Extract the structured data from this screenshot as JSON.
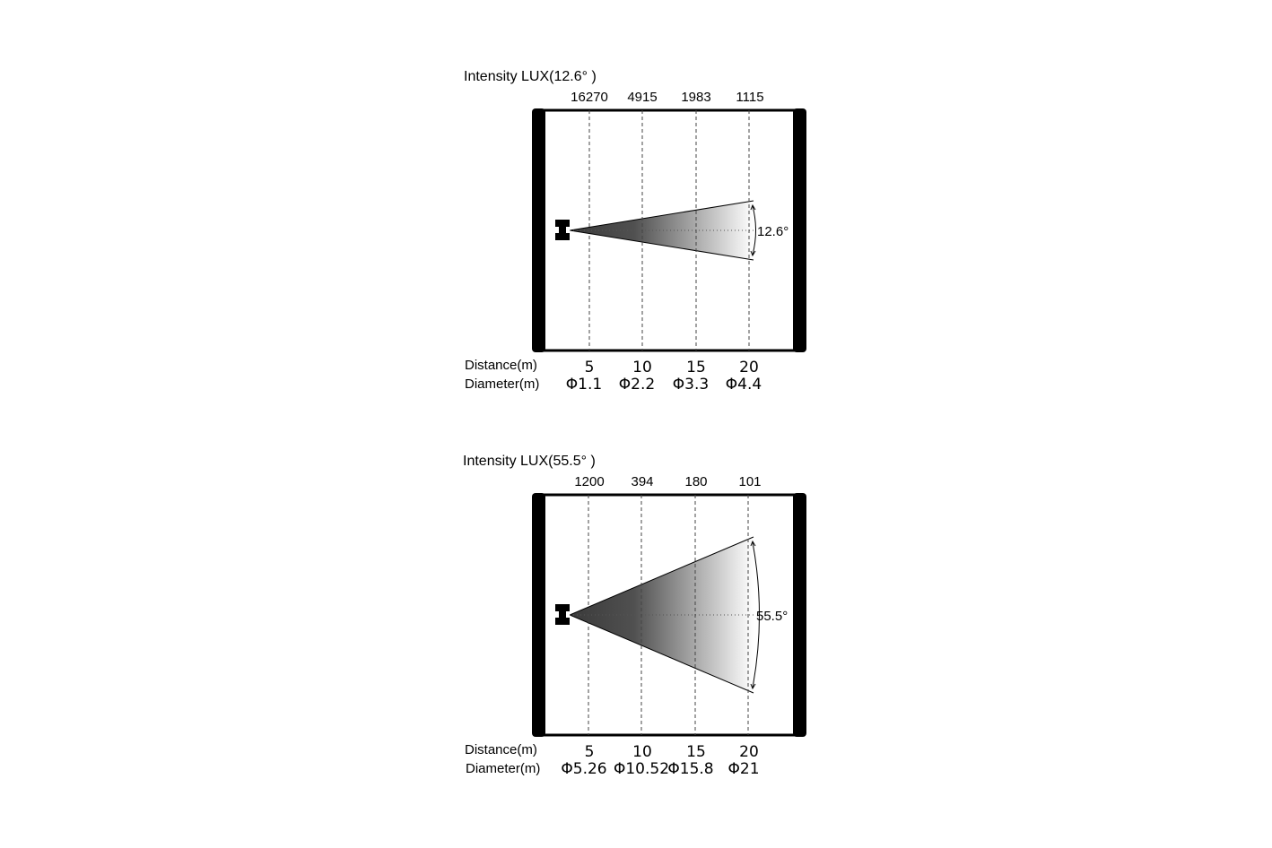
{
  "panels": [
    {
      "title": "Intensity LUX(12.6°  )",
      "beam_angle_label": "12.6°",
      "beam_angle_deg": 12.6,
      "lux_values": [
        "16270",
        "4915",
        "1983",
        "1115"
      ],
      "distance_label": "Distance(m)",
      "distances": [
        "5",
        "10",
        "15",
        "20"
      ],
      "diameter_label": "Diameter(m)",
      "diameters": [
        "Φ1.1",
        "Φ2.2",
        "Φ3.3",
        "Φ4.4"
      ]
    },
    {
      "title": "Intensity LUX(55.5°  )",
      "beam_angle_label": "55.5°",
      "beam_angle_deg": 55.5,
      "lux_values": [
        "1200",
        "394",
        "180",
        "101"
      ],
      "distance_label": "Distance(m)",
      "distances": [
        "5",
        "10",
        "15",
        "20"
      ],
      "diameter_label": "Diameter(m)",
      "diameters": [
        "Φ5.26",
        "Φ10.52",
        "Φ15.8",
        "Φ21"
      ]
    }
  ],
  "colors": {
    "frame": "#000000",
    "beam_dark": "#3a3a3a",
    "beam_light": "#ffffff",
    "guide": "#444444"
  }
}
